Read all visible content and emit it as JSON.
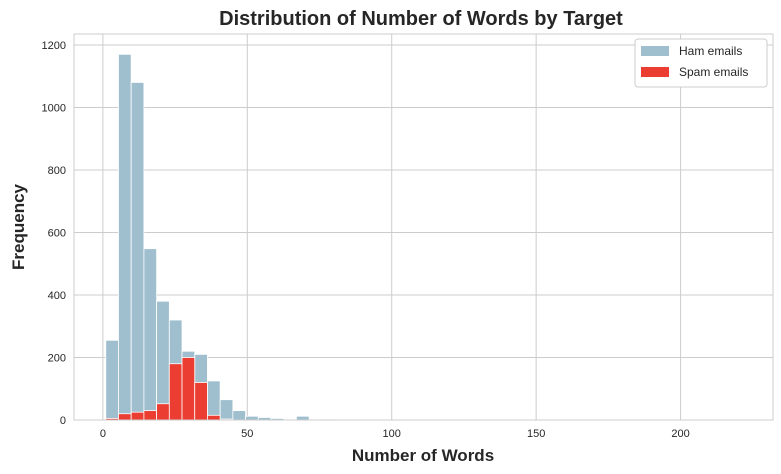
{
  "chart_data": {
    "type": "bar",
    "title": "Distribution of Number of Words by Target",
    "xlabel": "Number of Words",
    "ylabel": "Frequency",
    "xlim": [
      -10,
      232
    ],
    "ylim": [
      0,
      1235
    ],
    "xticks": [
      0,
      50,
      100,
      150,
      200
    ],
    "yticks": [
      0,
      200,
      400,
      600,
      800,
      1000,
      1200
    ],
    "grid": true,
    "legend_position": "top-right",
    "bin_width": 4.4,
    "bin_start": 1,
    "series": [
      {
        "name": "Ham emails",
        "color": "#9fbfcf",
        "counts": [
          255,
          1170,
          1080,
          548,
          380,
          320,
          220,
          210,
          125,
          65,
          30,
          12,
          8,
          5,
          0,
          12,
          0,
          3,
          2,
          0,
          0,
          0,
          0,
          0,
          0,
          0,
          0,
          0,
          0,
          0,
          0,
          0,
          0,
          0,
          0,
          0,
          0,
          0,
          0,
          0,
          0,
          0,
          0,
          0,
          0,
          0,
          0,
          0,
          0,
          0
        ]
      },
      {
        "name": "Spam emails",
        "color": "#ec3d32",
        "counts": [
          5,
          20,
          25,
          30,
          52,
          180,
          200,
          120,
          15,
          3
        ]
      }
    ]
  }
}
